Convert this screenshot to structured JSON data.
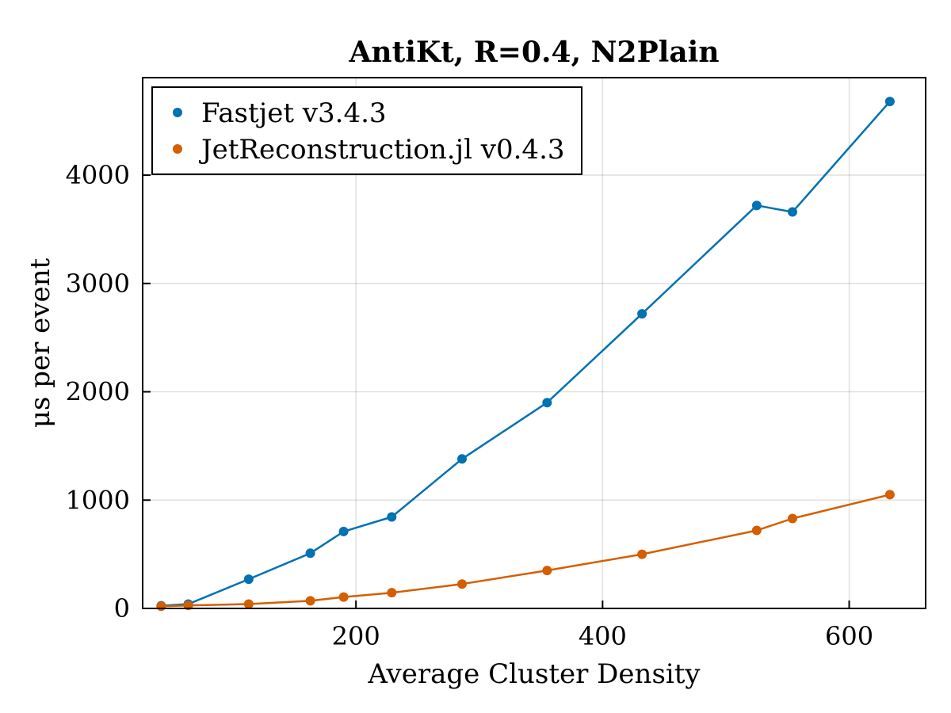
{
  "chart_data": {
    "type": "line",
    "title": "AntiKt, R=0.4, N2Plain",
    "xlabel": "Average Cluster Density",
    "ylabel": "μs per event",
    "xlim": [
      27,
      662
    ],
    "ylim": [
      0,
      4900
    ],
    "xticks": [
      200,
      400,
      600
    ],
    "yticks": [
      0,
      1000,
      2000,
      3000,
      4000
    ],
    "grid": true,
    "legend_position": "top-left",
    "markers": true,
    "x": [
      42,
      64,
      113,
      163,
      190,
      229,
      286,
      355,
      432,
      525,
      554,
      633
    ],
    "series": [
      {
        "name": "Fastjet v3.4.3",
        "color": "#0072b2",
        "values": [
          25,
          40,
          270,
          510,
          710,
          845,
          1380,
          1900,
          2720,
          3720,
          3660,
          4680
        ]
      },
      {
        "name": "JetReconstruction.jl v0.4.3",
        "color": "#d55e00",
        "values": [
          20,
          28,
          40,
          70,
          105,
          145,
          225,
          350,
          500,
          720,
          830,
          1050
        ]
      }
    ]
  }
}
